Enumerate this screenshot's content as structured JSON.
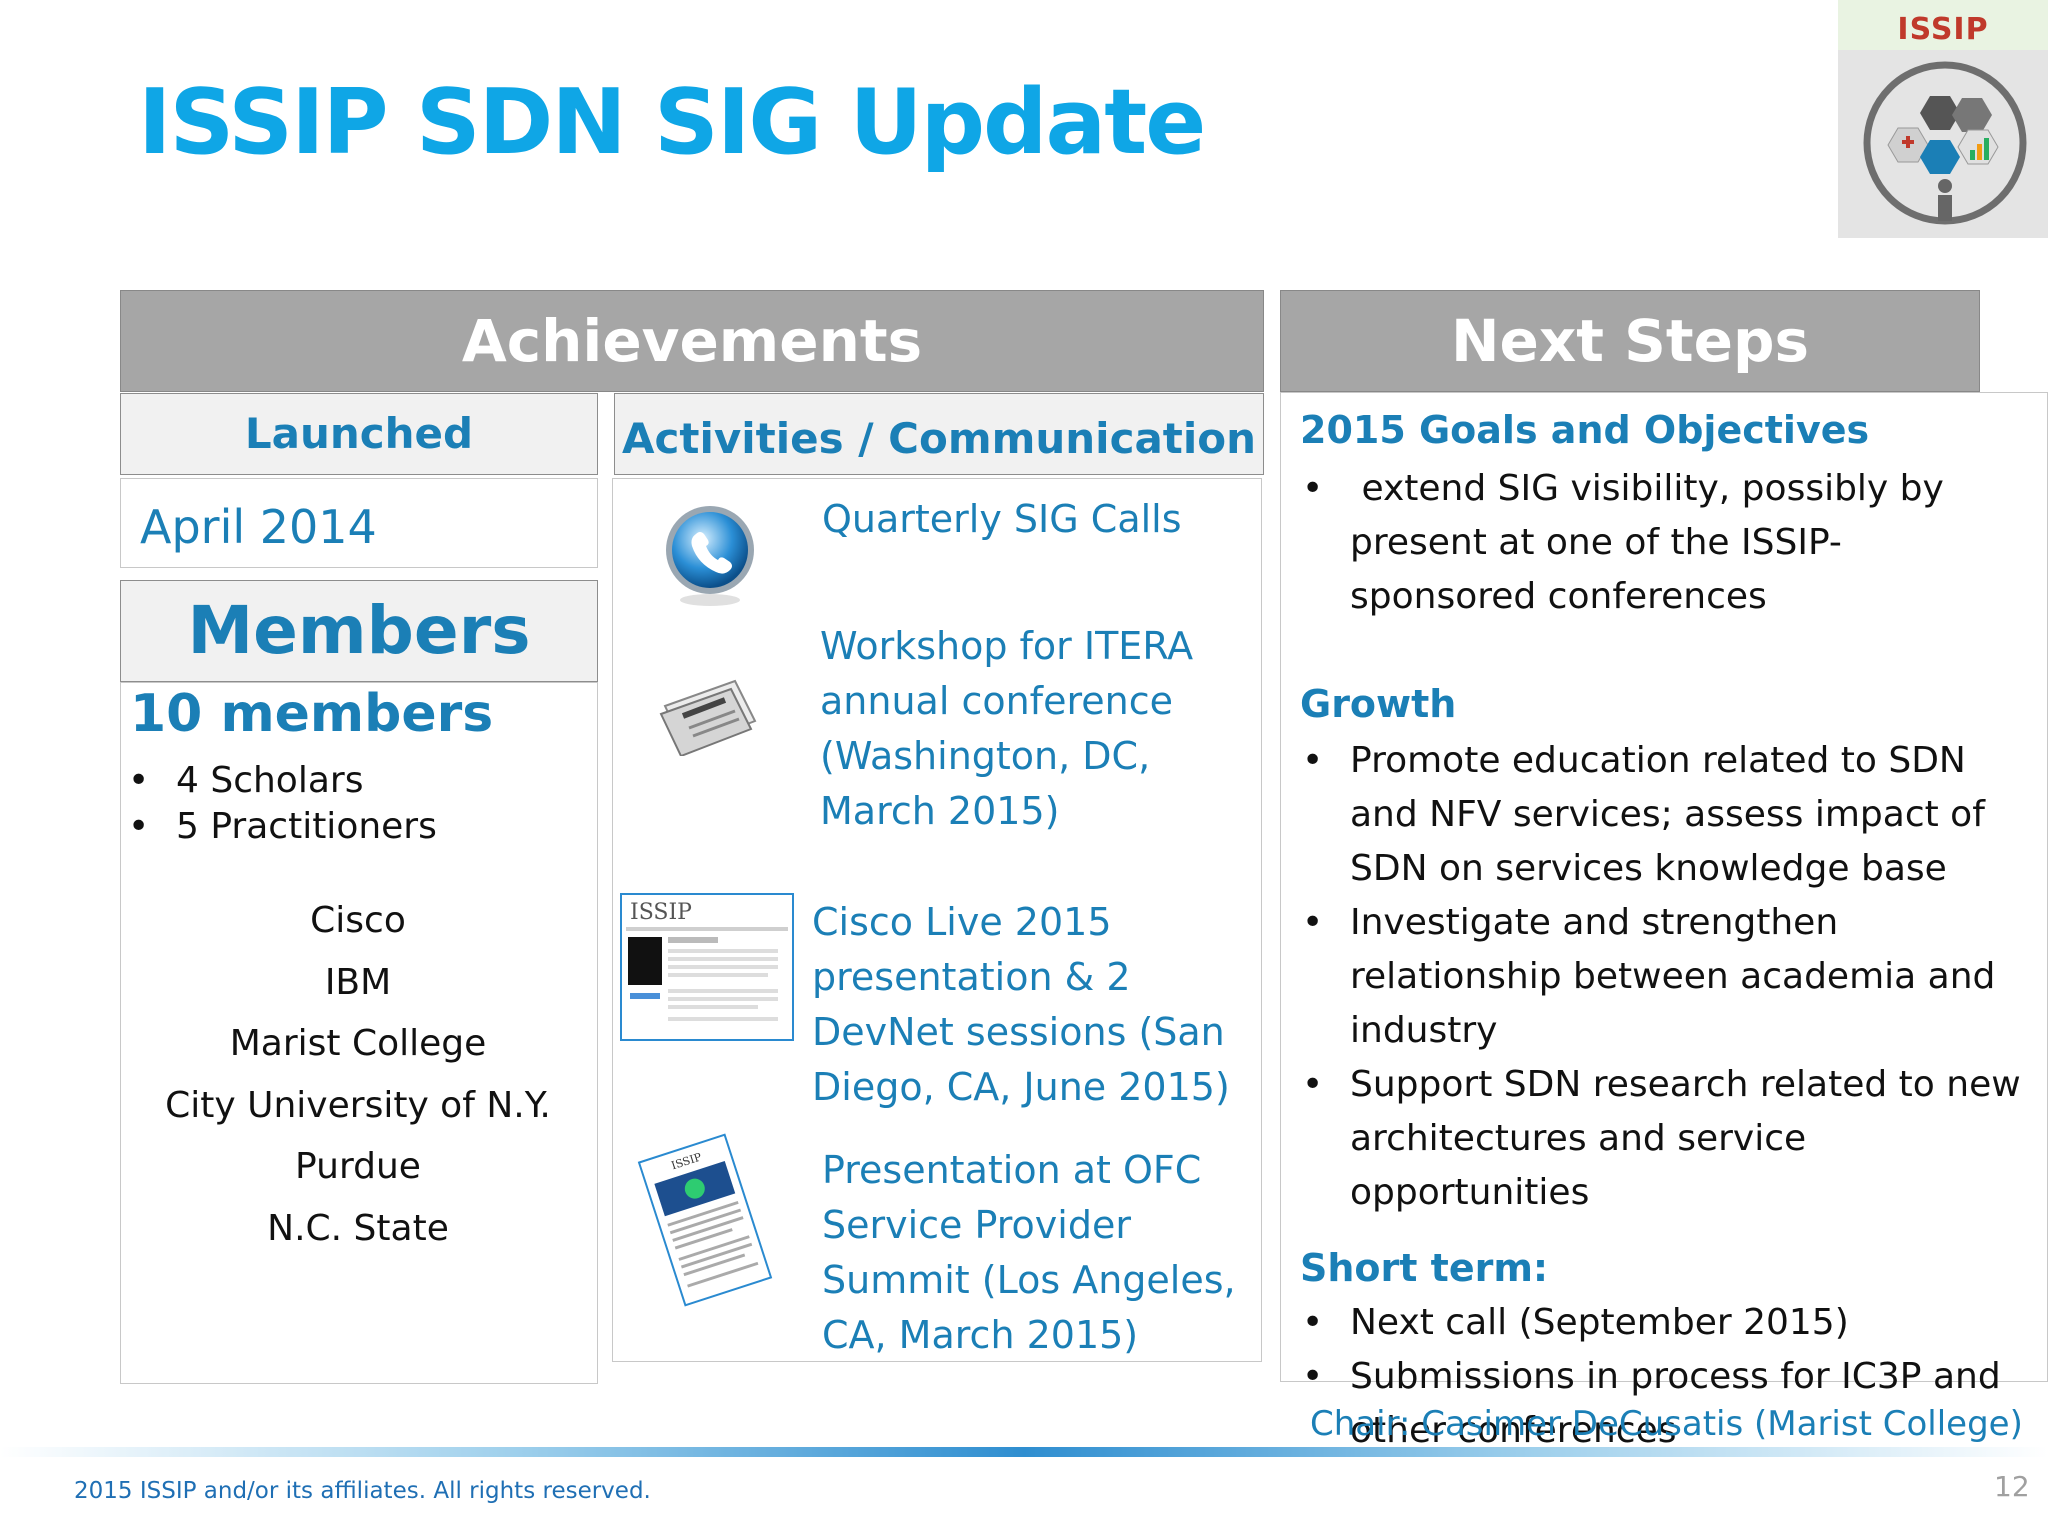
{
  "slide": {
    "title": "ISSIP SDN SIG Update",
    "logo_text": "ISSIP",
    "page_number": "12",
    "footer": "2015  ISSIP and/or its affiliates. All rights reserved.",
    "chair": "Chair: Casimer DeCusatis (Marist College)"
  },
  "achievements": {
    "header": "Achievements",
    "launched": {
      "label": "Launched",
      "value": "April 2014"
    },
    "members": {
      "label": "Members",
      "count": "10 members",
      "breakdown": [
        "4 Scholars",
        "5 Practitioners"
      ],
      "orgs": [
        "Cisco",
        "IBM",
        "Marist College",
        "City University of N.Y.",
        "Purdue",
        "N.C. State"
      ]
    },
    "activities": {
      "label": "Activities / Communication",
      "items": [
        {
          "icon": "phone-icon",
          "lines": [
            "Quarterly SIG Calls"
          ]
        },
        {
          "icon": "newspaper-icon",
          "lines": [
            "Workshop for ITERA",
            "annual conference",
            "(Washington, DC,",
            "March 2015)"
          ]
        },
        {
          "icon": "website-thumbnail-icon",
          "lines": [
            "Cisco Live 2015",
            "presentation & 2",
            "DevNet sessions (San",
            "Diego, CA, June 2015)"
          ]
        },
        {
          "icon": "document-icon",
          "lines": [
            "Presentation at OFC",
            "Service Provider",
            "Summit (Los Angeles,",
            "CA, March 2015)"
          ]
        }
      ]
    }
  },
  "next_steps": {
    "header": "Next Steps",
    "goals": {
      "heading": "2015 Goals and Objectives",
      "bullets": [
        " extend SIG visibility, possibly by present at one of the ISSIP-sponsored conferences"
      ]
    },
    "growth": {
      "heading": "Growth",
      "bullets": [
        "Promote education related to SDN and NFV services; assess impact of SDN on services knowledge base",
        "Investigate and strengthen relationship between academia and industry",
        "Support SDN research related to new architectures and service opportunities"
      ]
    },
    "short_term": {
      "heading": "Short term:",
      "bullets": [
        "Next call (September 2015)",
        "Submissions in process for IC3P and other conferences"
      ]
    }
  }
}
